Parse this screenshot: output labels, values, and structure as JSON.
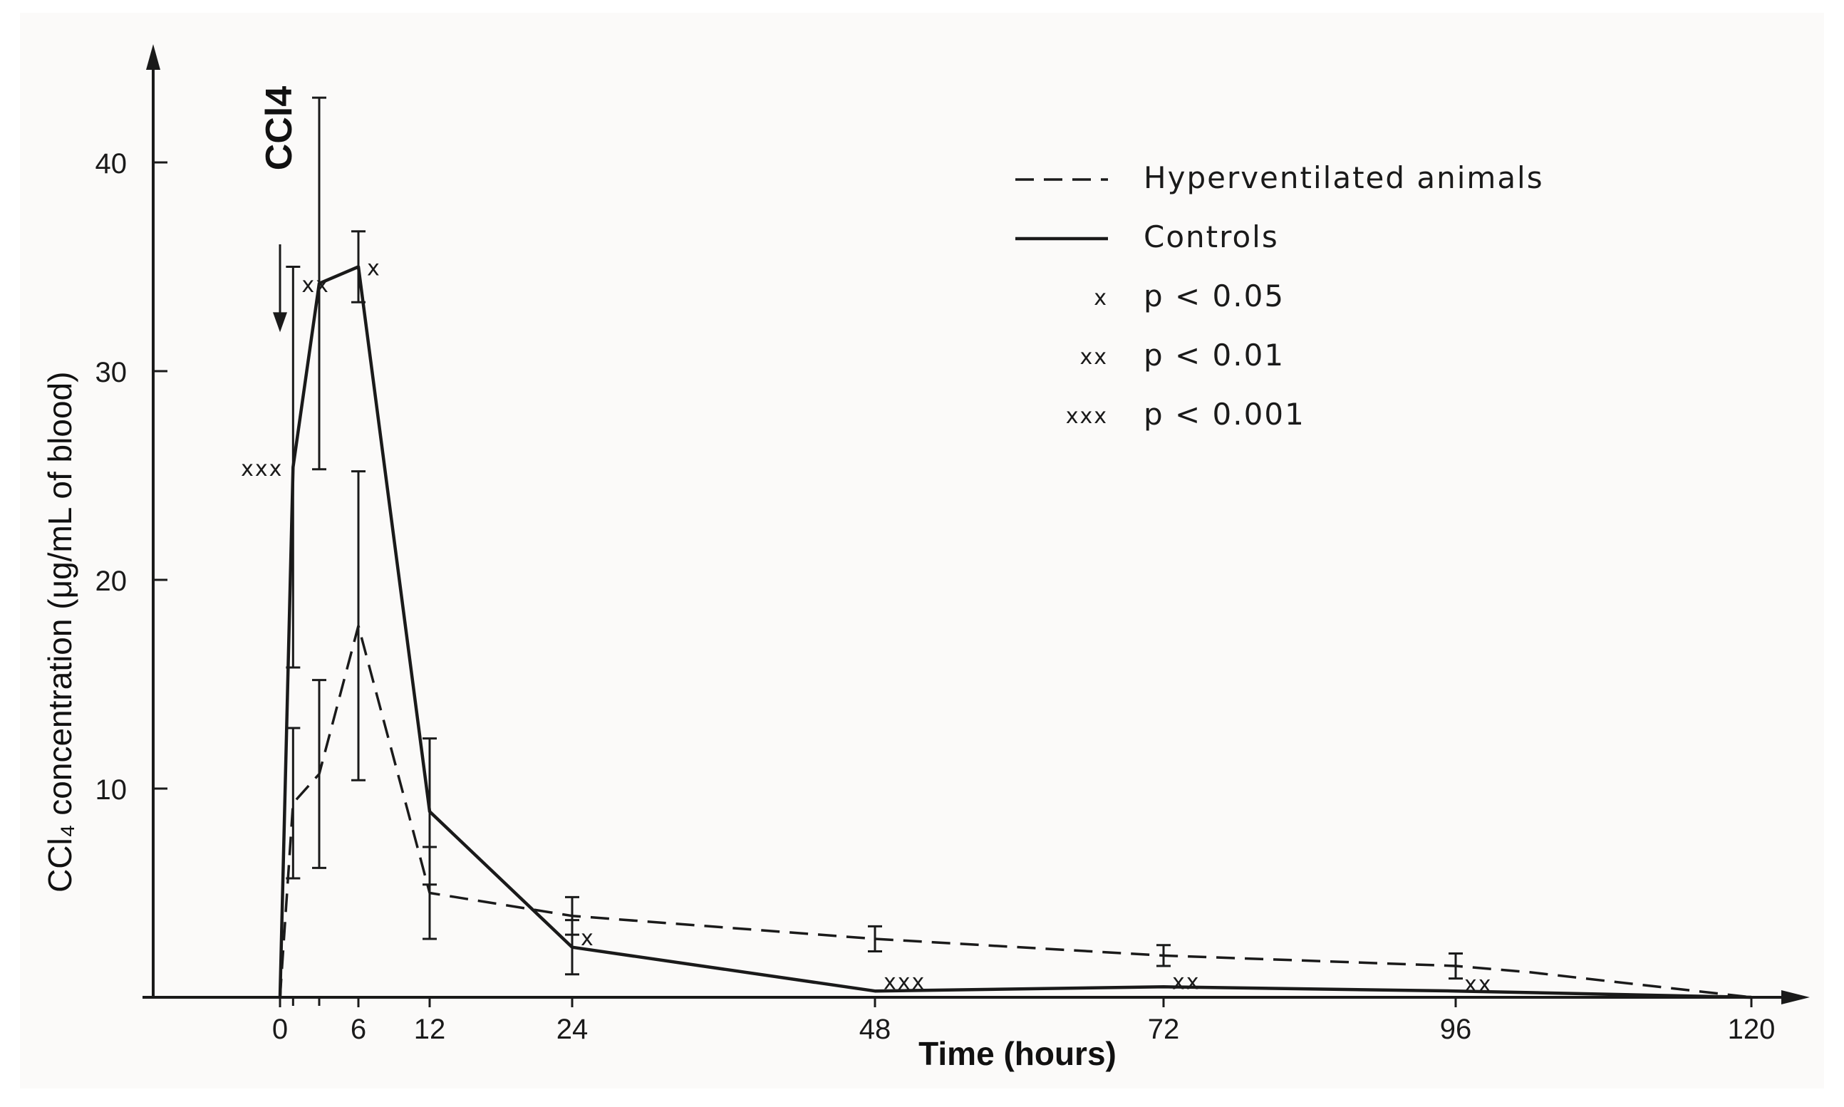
{
  "chart_data": {
    "type": "line",
    "title": "",
    "xlabel": "Time (hours)",
    "ylabel": "CCl₄ concentration (μg/mL of blood)",
    "x_ticks": [
      "0",
      "6",
      "12",
      "24",
      "48",
      "72",
      "96",
      "120"
    ],
    "x_tick_values": [
      0,
      6,
      12,
      24,
      48,
      72,
      96,
      120
    ],
    "y_ticks": [
      "10",
      "20",
      "30",
      "40"
    ],
    "y_tick_values": [
      10,
      20,
      30,
      40
    ],
    "xlim": [
      -10,
      125
    ],
    "ylim": [
      0,
      45
    ],
    "grid": false,
    "legend_position": "top-right",
    "annotation": {
      "label": "CCl4",
      "x": 0,
      "y_from": 40,
      "y_to": 32
    },
    "series": [
      {
        "name": "Hyperventilated animals",
        "style": "dashed",
        "x": [
          0,
          1,
          3,
          6,
          12,
          24,
          48,
          72,
          96,
          102,
          120
        ],
        "y": [
          0,
          9.3,
          10.7,
          17.8,
          5.0,
          3.9,
          2.8,
          2.0,
          1.5,
          1.2,
          0
        ],
        "err": [
          0,
          3.6,
          4.5,
          7.4,
          2.2,
          0.9,
          0.6,
          0.5,
          0.6,
          0,
          0
        ]
      },
      {
        "name": "Controls",
        "style": "solid",
        "x": [
          0,
          1,
          3,
          6,
          12,
          24,
          48,
          72,
          96,
          120
        ],
        "y": [
          0,
          25.4,
          34.2,
          35.0,
          8.9,
          2.4,
          0.3,
          0.5,
          0.3,
          0
        ],
        "err": [
          0,
          9.6,
          8.9,
          1.7,
          3.5,
          1.3,
          0,
          0,
          0,
          0
        ]
      }
    ],
    "significance_marks": [
      {
        "label": "xxx",
        "x": 1,
        "y": 25.4,
        "side": "left"
      },
      {
        "label": "xx",
        "x": 1,
        "y": 34.2,
        "side": "right"
      },
      {
        "label": "x",
        "x": 6,
        "y": 35.0,
        "side": "right"
      },
      {
        "label": "x",
        "x": 24,
        "y": 2.9,
        "side": "right"
      },
      {
        "label": "xxx",
        "x": 48,
        "y": 0.8,
        "side": "right"
      },
      {
        "label": "xx",
        "x": 72,
        "y": 0.8,
        "side": "right"
      },
      {
        "label": "xx",
        "x": 96,
        "y": 0.7,
        "side": "right"
      }
    ],
    "legend": [
      {
        "symbol": "dashed",
        "label": "Hyperventilated   animals"
      },
      {
        "symbol": "solid",
        "label": "Controls"
      },
      {
        "symbol": "x",
        "label": "p < 0.05"
      },
      {
        "symbol": "xx",
        "label": "p < 0.01"
      },
      {
        "symbol": "xxx",
        "label": "p < 0.001"
      }
    ]
  },
  "colors": {
    "ink": "#1a1a1a",
    "background": "#ffffff",
    "paper": "#fbfaf9"
  }
}
